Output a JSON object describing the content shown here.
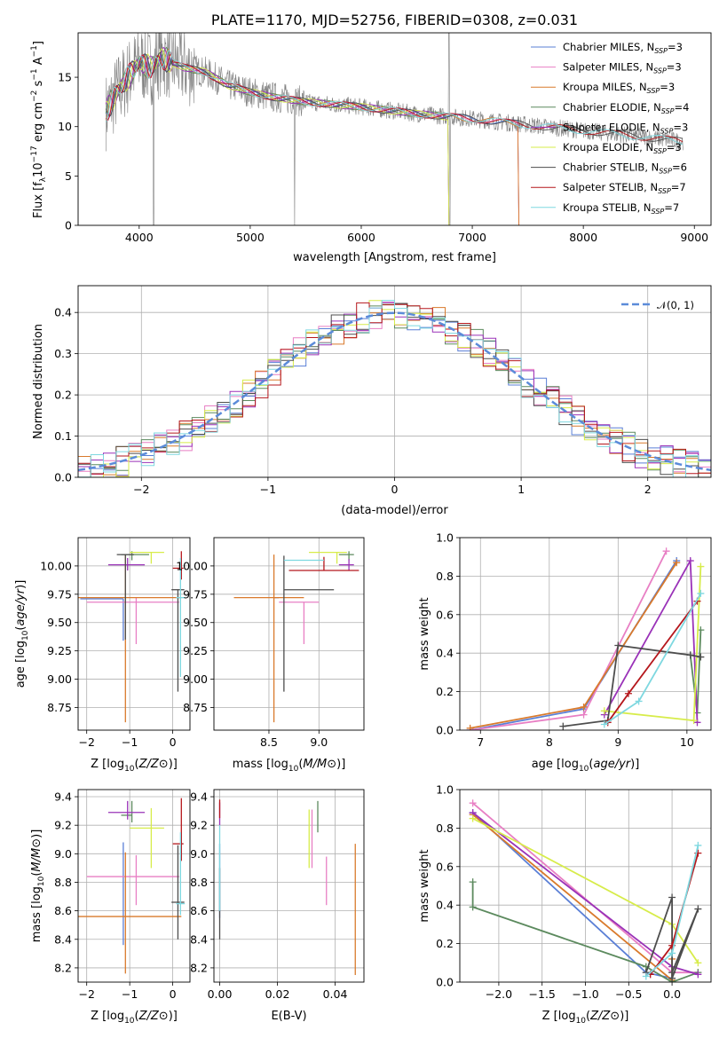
{
  "chart_data": [
    {
      "id": "spectrum",
      "type": "line",
      "title": "PLATE=1170, MJD=52756, FIBERID=0308, z=0.031",
      "xlabel": "wavelength [Angstrom, rest frame]",
      "ylabel": "Flux [f_λ 10^-17 erg cm^-2 s^-1 A^-1]",
      "xlim": [
        3450,
        9150
      ],
      "ylim": [
        0,
        19.5
      ],
      "xticks": [
        4000,
        5000,
        6000,
        7000,
        8000,
        9000
      ],
      "yticks": [
        0,
        5,
        10,
        15
      ],
      "data_series": {
        "name": "",
        "color": "#808080"
      },
      "model_shape": {
        "x": [
          3700,
          3800,
          3900,
          4000,
          4100,
          4200,
          4300,
          4400,
          4600,
          4800,
          5000,
          5200,
          5500,
          6000,
          6500,
          7000,
          7400,
          8000,
          8500,
          8900
        ],
        "y": [
          11.5,
          13.5,
          15.0,
          16.5,
          16.0,
          17.0,
          16.5,
          16.0,
          15.5,
          14.2,
          13.5,
          13.0,
          12.5,
          12.0,
          11.3,
          10.8,
          10.3,
          9.6,
          9.0,
          8.5
        ]
      },
      "series": [
        {
          "name": "Chabrier MILES, N",
          "sub": "SSP",
          "tail": "=3",
          "color": "#5a7fd6",
          "xmax": 7420
        },
        {
          "name": "Salpeter MILES, N",
          "sub": "SSP",
          "tail": "=3",
          "color": "#e87fc4",
          "xmax": 7420
        },
        {
          "name": "Kroupa MILES, N",
          "sub": "SSP",
          "tail": "=3",
          "color": "#d97a2c",
          "xmax": 7420
        },
        {
          "name": "Chabrier ELODIE, N",
          "sub": "SSP",
          "tail": "=4",
          "color": "#5c8a5e",
          "xmax": 6790
        },
        {
          "name": "Salpeter ELODIE, N",
          "sub": "SSP",
          "tail": "=3",
          "color": "#9a32b8",
          "xmax": 6790
        },
        {
          "name": "Kroupa ELODIE, N",
          "sub": "SSP",
          "tail": "=3",
          "color": "#d7ec4a",
          "xmax": 6790
        },
        {
          "name": "Chabrier STELIB, N",
          "sub": "SSP",
          "tail": "=6",
          "color": "#4d4d4d",
          "xmax": 8900
        },
        {
          "name": "Salpeter STELIB, N",
          "sub": "SSP",
          "tail": "=7",
          "color": "#b5171c",
          "xmax": 8900
        },
        {
          "name": "Kroupa STELIB, N",
          "sub": "SSP",
          "tail": "=7",
          "color": "#7ed8e0",
          "xmax": 8900
        }
      ]
    },
    {
      "id": "residuals",
      "type": "line",
      "xlabel": "(data-model)/error",
      "ylabel": "Normed distribution",
      "xlim": [
        -2.5,
        2.5
      ],
      "ylim": [
        0,
        0.465
      ],
      "xticks": [
        -2,
        -1,
        0,
        1,
        2
      ],
      "yticks": [
        0.0,
        0.1,
        0.2,
        0.3,
        0.4
      ],
      "grid": true,
      "legend": "𝒩(0, 1)",
      "legend_position": "top-right",
      "gauss_color": "#5b8bd9"
    },
    {
      "id": "age_vs_Z",
      "type": "scatter",
      "xlabel": "Z [log10(Z/Z⊙)]",
      "ylabel": "age  [log10(age/yr)]",
      "xlim": [
        -2.2,
        0.4
      ],
      "ylim": [
        8.55,
        10.25
      ],
      "xticks": [
        -2,
        -1,
        0
      ],
      "yticks": [
        8.75,
        9.0,
        9.25,
        9.5,
        9.75,
        10.0
      ],
      "grid": true,
      "points": [
        {
          "color": "#5a7fd6",
          "x": -1.15,
          "xerr": [
            1.0,
            0.0
          ],
          "y": 9.71,
          "yerr": [
            0.37,
            0.0
          ]
        },
        {
          "color": "#e87fc4",
          "x": -0.85,
          "xerr": [
            1.15,
            1.0
          ],
          "y": 9.68,
          "yerr": [
            0.37,
            0.04
          ]
        },
        {
          "color": "#d97a2c",
          "x": -1.1,
          "xerr": [
            1.1,
            1.3
          ],
          "y": 9.72,
          "yerr": [
            1.1,
            0.38
          ]
        },
        {
          "color": "#5c8a5e",
          "x": -0.95,
          "xerr": [
            0.25,
            0.4
          ],
          "y": 10.1,
          "yerr": [
            0.05,
            0.03
          ]
        },
        {
          "color": "#9a32b8",
          "x": -1.05,
          "xerr": [
            0.45,
            0.4
          ],
          "y": 10.01,
          "yerr": [
            0.05,
            0.06
          ]
        },
        {
          "color": "#d7ec4a",
          "x": -0.5,
          "xerr": [
            0.5,
            0.3
          ],
          "y": 10.12,
          "yerr": [
            0.1,
            0.0
          ]
        },
        {
          "color": "#4d4d4d",
          "x": -1.1,
          "xerr": [
            0.2,
            0.2
          ],
          "y": 10.1,
          "yerr": [
            0.75,
            0.0
          ]
        },
        {
          "color": "#4d4d4d",
          "x": 0.12,
          "xerr": [
            0.15,
            0.15
          ],
          "y": 9.79,
          "yerr": [
            0.9,
            0.0
          ]
        },
        {
          "color": "#b5171c",
          "x": 0.2,
          "xerr": [
            0.2,
            0.05
          ],
          "y": 9.98,
          "yerr": [
            0.1,
            0.15
          ]
        },
        {
          "color": "#7ed8e0",
          "x": 0.18,
          "xerr": [
            0.1,
            0.1
          ],
          "y": 9.72,
          "yerr": [
            0.7,
            0.35
          ]
        }
      ]
    },
    {
      "id": "age_vs_mass",
      "type": "scatter",
      "xlabel": "mass [log10(M/M⊙)]",
      "ylabel": "",
      "xlim": [
        7.95,
        9.45
      ],
      "ylim": [
        8.55,
        10.25
      ],
      "xticks": [
        8.5,
        9.0
      ],
      "yticks": [
        8.75,
        9.0,
        9.25,
        9.5,
        9.75,
        10.0
      ],
      "grid": true,
      "points": [
        {
          "color": "#5a7fd6",
          "x": 8.6,
          "xerr": [
            0.05,
            0.0
          ],
          "y": 9.72,
          "yerr": [
            0.0,
            0.0
          ]
        },
        {
          "color": "#e87fc4",
          "x": 8.85,
          "xerr": [
            0.25,
            0.15
          ],
          "y": 9.68,
          "yerr": [
            0.37,
            0.0
          ]
        },
        {
          "color": "#d97a2c",
          "x": 8.55,
          "xerr": [
            0.4,
            0.3
          ],
          "y": 9.72,
          "yerr": [
            1.1,
            0.38
          ]
        },
        {
          "color": "#5c8a5e",
          "x": 9.3,
          "xerr": [
            0.1,
            0.05
          ],
          "y": 10.1,
          "yerr": [
            0.05,
            0.03
          ]
        },
        {
          "color": "#9a32b8",
          "x": 9.3,
          "xerr": [
            0.1,
            0.05
          ],
          "y": 10.01,
          "yerr": [
            0.05,
            0.05
          ]
        },
        {
          "color": "#d7ec4a",
          "x": 9.18,
          "xerr": [
            0.28,
            0.1
          ],
          "y": 10.12,
          "yerr": [
            0.1,
            0.0
          ]
        },
        {
          "color": "#4d4d4d",
          "x": 8.65,
          "xerr": [
            0.0,
            0.5
          ],
          "y": 9.79,
          "yerr": [
            0.9,
            0.3
          ]
        },
        {
          "color": "#b5171c",
          "x": 9.05,
          "xerr": [
            0.35,
            0.35
          ],
          "y": 9.96,
          "yerr": [
            0.0,
            0.12
          ]
        },
        {
          "color": "#7ed8e0",
          "x": 9.05,
          "xerr": [
            0.4,
            0.0
          ],
          "y": 10.05,
          "yerr": [
            0.0,
            0.0
          ]
        }
      ]
    },
    {
      "id": "mass_weight_vs_age",
      "type": "line",
      "xlabel": "age  [log10(age/yr)]",
      "ylabel": "mass weight",
      "xlim": [
        6.7,
        10.35
      ],
      "ylim": [
        0,
        1.0
      ],
      "xticks": [
        7,
        8,
        9,
        10
      ],
      "yticks": [
        0.0,
        0.2,
        0.4,
        0.6,
        0.8,
        1.0
      ],
      "grid": true,
      "series": [
        {
          "color": "#5a7fd6",
          "x": [
            6.85,
            8.5,
            9.85
          ],
          "y": [
            0.0,
            0.11,
            0.88
          ]
        },
        {
          "color": "#e87fc4",
          "x": [
            6.85,
            8.5,
            9.7
          ],
          "y": [
            0.0,
            0.08,
            0.93
          ]
        },
        {
          "color": "#d97a2c",
          "x": [
            6.85,
            8.5,
            9.85
          ],
          "y": [
            0.01,
            0.12,
            0.87
          ]
        },
        {
          "color": "#5c8a5e",
          "x": [
            10.05,
            10.15,
            10.2
          ],
          "y": [
            0.39,
            0.09,
            0.52
          ]
        },
        {
          "color": "#9a32b8",
          "x": [
            8.8,
            10.05,
            10.15
          ],
          "y": [
            0.08,
            0.88,
            0.04
          ]
        },
        {
          "color": "#d7ec4a",
          "x": [
            8.8,
            10.1,
            10.2
          ],
          "y": [
            0.1,
            0.05,
            0.85
          ]
        },
        {
          "color": "#4d4d4d",
          "x": [
            8.2,
            8.85,
            9.0,
            10.05,
            10.2
          ],
          "y": [
            0.02,
            0.05,
            0.44,
            0.39,
            0.38
          ]
        },
        {
          "color": "#b5171c",
          "x": [
            8.85,
            9.15,
            10.15
          ],
          "y": [
            0.04,
            0.19,
            0.67
          ]
        },
        {
          "color": "#7ed8e0",
          "x": [
            8.8,
            9.3,
            10.2
          ],
          "y": [
            0.03,
            0.15,
            0.71
          ]
        }
      ]
    },
    {
      "id": "mass_vs_Z",
      "type": "scatter",
      "xlabel": "Z [log10(Z/Z⊙)]",
      "ylabel": "mass [log10(M/M⊙)]",
      "xlim": [
        -2.2,
        0.4
      ],
      "ylim": [
        8.1,
        9.45
      ],
      "xticks": [
        -2,
        -1,
        0
      ],
      "yticks": [
        8.2,
        8.4,
        8.6,
        8.8,
        9.0,
        9.2,
        9.4
      ],
      "grid": true,
      "points": [
        {
          "color": "#5a7fd6",
          "x": -1.15,
          "xerr": [
            0.0,
            0.0
          ],
          "y": 8.58,
          "yerr": [
            0.22,
            0.5
          ]
        },
        {
          "color": "#e87fc4",
          "x": -0.85,
          "xerr": [
            1.15,
            1.0
          ],
          "y": 8.84,
          "yerr": [
            0.2,
            0.15
          ]
        },
        {
          "color": "#d97a2c",
          "x": -1.1,
          "xerr": [
            1.1,
            1.3
          ],
          "y": 8.56,
          "yerr": [
            0.4,
            0.45
          ]
        },
        {
          "color": "#5c8a5e",
          "x": -0.95,
          "xerr": [
            0.25,
            0.0
          ],
          "y": 9.27,
          "yerr": [
            0.05,
            0.1
          ]
        },
        {
          "color": "#9a32b8",
          "x": -1.05,
          "xerr": [
            0.45,
            0.4
          ],
          "y": 9.29,
          "yerr": [
            0.05,
            0.08
          ]
        },
        {
          "color": "#d7ec4a",
          "x": -0.5,
          "xerr": [
            0.5,
            0.3
          ],
          "y": 9.18,
          "yerr": [
            0.28,
            0.14
          ]
        },
        {
          "color": "#4d4d4d",
          "x": 0.12,
          "xerr": [
            0.15,
            0.15
          ],
          "y": 8.66,
          "yerr": [
            0.26,
            0.4
          ]
        },
        {
          "color": "#b5171c",
          "x": 0.2,
          "xerr": [
            0.2,
            0.05
          ],
          "y": 9.07,
          "yerr": [
            0.12,
            0.32
          ]
        },
        {
          "color": "#7ed8e0",
          "x": 0.18,
          "xerr": [
            0.1,
            0.1
          ],
          "y": 8.65,
          "yerr": [
            0.08,
            0.5
          ]
        }
      ]
    },
    {
      "id": "mass_vs_ebv",
      "type": "scatter",
      "xlabel": "E(B-V)",
      "ylabel": "",
      "xlim": [
        -0.002,
        0.05
      ],
      "ylim": [
        8.1,
        9.45
      ],
      "xticks": [
        0.0,
        0.02,
        0.04
      ],
      "yticks": [
        8.2,
        8.4,
        8.6,
        8.8,
        9.0,
        9.2,
        9.4
      ],
      "grid": true,
      "points": [
        {
          "color": "#5a7fd6",
          "x": 0.0,
          "y0": 8.55,
          "y1": 9.07
        },
        {
          "color": "#e87fc4",
          "x": 0.032,
          "y0": 8.9,
          "y1": 9.31
        },
        {
          "color": "#d97a2c",
          "x": 0.047,
          "y0": 8.15,
          "y1": 9.07
        },
        {
          "color": "#5c8a5e",
          "x": 0.034,
          "y0": 9.15,
          "y1": 9.37
        },
        {
          "color": "#9a32b8",
          "x": 0.0,
          "y0": 9.2,
          "y1": 9.36
        },
        {
          "color": "#d7ec4a",
          "x": 0.031,
          "y0": 8.9,
          "y1": 9.31
        },
        {
          "color": "#4d4d4d",
          "x": 0.0,
          "y0": 8.4,
          "y1": 8.9
        },
        {
          "color": "#b5171c",
          "x": 0.0,
          "y0": 9.25,
          "y1": 9.38
        },
        {
          "color": "#e87fc4",
          "x": 0.037,
          "y0": 8.64,
          "y1": 8.98
        },
        {
          "color": "#7ed8e0",
          "x": 0.0,
          "y0": 8.6,
          "y1": 9.2
        }
      ]
    },
    {
      "id": "mass_weight_vs_Z",
      "type": "line",
      "xlabel": "Z [log10(Z/Z⊙)]",
      "ylabel": "mass weight",
      "xlim": [
        -2.45,
        0.45
      ],
      "ylim": [
        0,
        1.0
      ],
      "xticks": [
        -2.0,
        -1.5,
        -1.0,
        -0.5,
        0.0
      ],
      "yticks": [
        0.0,
        0.2,
        0.4,
        0.6,
        0.8,
        1.0
      ],
      "grid": true,
      "series": [
        {
          "color": "#5a7fd6",
          "x": [
            -2.3,
            -0.3,
            0.0
          ],
          "y": [
            0.88,
            0.05,
            0.02
          ]
        },
        {
          "color": "#e87fc4",
          "x": [
            -2.3,
            0.0,
            0.3
          ],
          "y": [
            0.93,
            0.05,
            0.05
          ]
        },
        {
          "color": "#d97a2c",
          "x": [
            -2.3,
            0.0,
            0.0
          ],
          "y": [
            0.87,
            0.01,
            0.12
          ]
        },
        {
          "color": "#5c8a5e",
          "x": [
            -2.3,
            -2.3,
            -0.3,
            0.0,
            0.3
          ],
          "y": [
            0.52,
            0.39,
            0.08,
            0.0,
            0.05
          ]
        },
        {
          "color": "#9a32b8",
          "x": [
            -2.3,
            0.0,
            0.3
          ],
          "y": [
            0.88,
            0.08,
            0.04
          ]
        },
        {
          "color": "#d7ec4a",
          "x": [
            -2.3,
            0.0,
            0.3
          ],
          "y": [
            0.85,
            0.3,
            0.1
          ]
        },
        {
          "color": "#4d4d4d",
          "x": [
            -0.3,
            0.0,
            0.0,
            0.3,
            0.0
          ],
          "y": [
            0.05,
            0.44,
            0.02,
            0.38,
            0.05
          ]
        },
        {
          "color": "#b5171c",
          "x": [
            -0.25,
            0.0,
            0.3
          ],
          "y": [
            0.04,
            0.19,
            0.67
          ]
        },
        {
          "color": "#7ed8e0",
          "x": [
            -0.3,
            0.0,
            0.3
          ],
          "y": [
            0.03,
            0.15,
            0.71
          ]
        }
      ]
    }
  ]
}
